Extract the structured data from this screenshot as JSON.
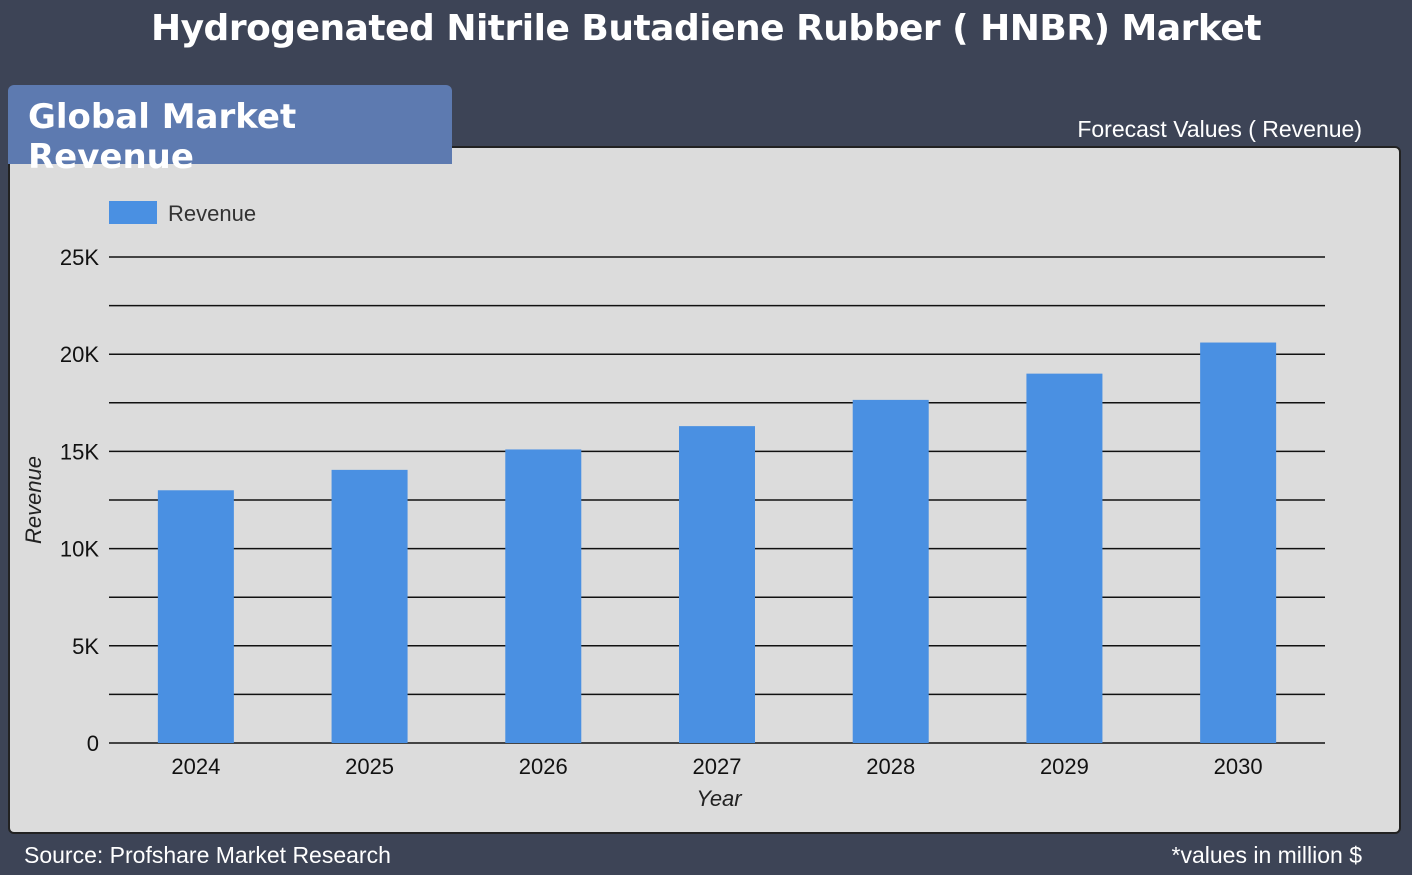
{
  "page": {
    "title": "Hydrogenated Nitrile Butadiene Rubber ( HNBR) Market",
    "badge": "Global Market Revenue",
    "forecast_label": "Forecast Values ( Revenue)",
    "source": "Source: Profshare Market Research",
    "units_note": "*values in million $"
  },
  "colors": {
    "background": "#3d4456",
    "badge": "#5d7ab0",
    "panel": "#dcdcdc",
    "bar": "#4a90e2",
    "gridline": "#111111"
  },
  "chart_data": {
    "type": "bar",
    "title": "",
    "xlabel": "Year",
    "ylabel": "Revenue",
    "categories": [
      "2024",
      "2025",
      "2026",
      "2027",
      "2028",
      "2029",
      "2030"
    ],
    "series": [
      {
        "name": "Revenue",
        "values": [
          13000,
          14050,
          15100,
          16300,
          17650,
          19000,
          20600
        ]
      }
    ],
    "ylim": [
      0,
      25000
    ],
    "yticks": [
      {
        "value": 0,
        "label": "0"
      },
      {
        "value": 5000,
        "label": "5K"
      },
      {
        "value": 10000,
        "label": "10K"
      },
      {
        "value": 15000,
        "label": "15K"
      },
      {
        "value": 20000,
        "label": "20K"
      },
      {
        "value": 25000,
        "label": "25K"
      }
    ],
    "minor_gridlines": [
      2500,
      7500,
      12500,
      17500,
      22500
    ],
    "grid": true,
    "legend": "top-left"
  }
}
